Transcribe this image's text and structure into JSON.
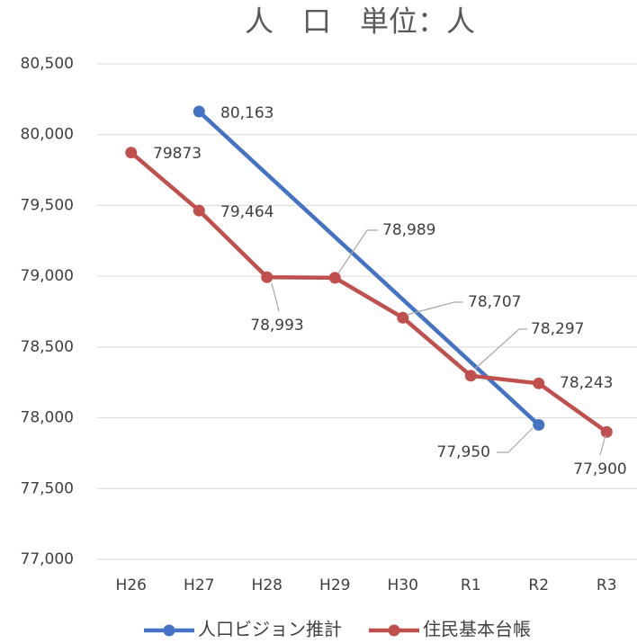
{
  "chart_data": {
    "type": "line",
    "title": "人　口　単位：人",
    "categories": [
      "H26",
      "H27",
      "H28",
      "H29",
      "H30",
      "R1",
      "R2",
      "R3"
    ],
    "series": [
      {
        "name": "人口ビジョン推計",
        "color": "#4472c4",
        "values": [
          null,
          80163,
          null,
          null,
          null,
          null,
          77950,
          null
        ],
        "value_labels": [
          null,
          "80,163",
          null,
          null,
          null,
          null,
          "77,950",
          null
        ]
      },
      {
        "name": "住民基本台帳",
        "color": "#c0504d",
        "values": [
          79873,
          79464,
          78993,
          78989,
          78707,
          78297,
          78243,
          77900
        ],
        "value_labels": [
          "79873",
          "79,464",
          "78,993",
          "78,989",
          "78,707",
          "78,297",
          "78,243",
          "77,900"
        ]
      }
    ],
    "connect_gaps": true,
    "ylim": [
      77000,
      80500
    ],
    "yticks": [
      {
        "value": 77000,
        "label": "77,000"
      },
      {
        "value": 77500,
        "label": "77,500"
      },
      {
        "value": 78000,
        "label": "78,000"
      },
      {
        "value": 78500,
        "label": "78,500"
      },
      {
        "value": 79000,
        "label": "79,000"
      },
      {
        "value": 79500,
        "label": "79,500"
      },
      {
        "value": 80000,
        "label": "80,000"
      },
      {
        "value": 80500,
        "label": "80,500"
      }
    ],
    "grid": true,
    "legend": "bottom"
  }
}
